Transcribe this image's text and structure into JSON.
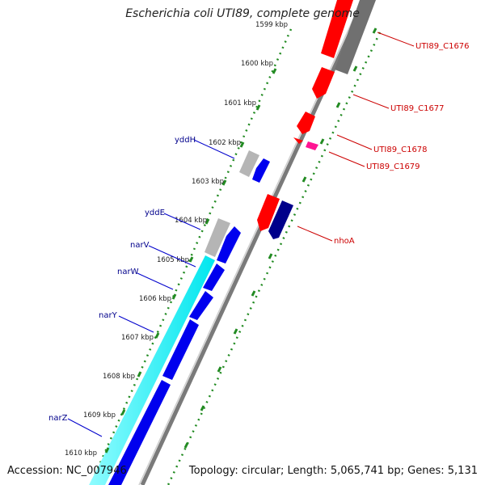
{
  "header": {
    "title": "Escherichia coli UTI89, complete genome"
  },
  "footer": {
    "accession": "Accession: NC_007946",
    "topology": "Topology: circular; Length: 5,065,741 bp; Genes: 5,131"
  },
  "ruler": {
    "tick_labels": [
      "1599 kbp",
      "1600 kbp",
      "1601 kbp",
      "1602 kbp",
      "1603 kbp",
      "1604 kbp",
      "1605 kbp",
      "1606 kbp",
      "1607 kbp",
      "1608 kbp",
      "1609 kbp",
      "1610 kbp"
    ]
  },
  "genes_left": [
    {
      "label": "yddH"
    },
    {
      "label": "yddE"
    },
    {
      "label": "narV"
    },
    {
      "label": "narW"
    },
    {
      "label": "narY"
    },
    {
      "label": "narZ"
    }
  ],
  "genes_right": [
    {
      "label": "UTI89_C1676"
    },
    {
      "label": "UTI89_C1677"
    },
    {
      "label": "UTI89_C1678"
    },
    {
      "label": "UTI89_C1679"
    },
    {
      "label": "nhoA"
    }
  ],
  "colors": {
    "forward_cds": "#0000ee",
    "forward_cds_dark": "#00008b",
    "reverse_cds": "#ff0000",
    "reverse_cds_alt": "#ff1493",
    "orf_grey": "#b0b0b0",
    "orf_grey_dark": "#6e6e6e",
    "operon_cyan": "#00ffff",
    "backbone": "#7a7a7a",
    "gc_dots": "#228b22",
    "left_label_color": "#00008b",
    "right_label_color": "#cc0000"
  }
}
